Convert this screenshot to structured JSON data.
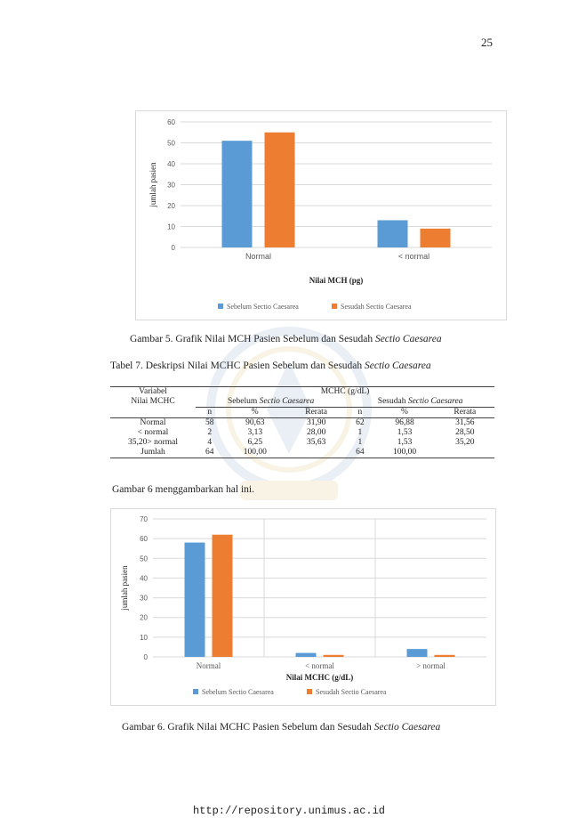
{
  "page_number": "25",
  "figure5": {
    "caption_prefix": "Gambar 5. Grafik Nilai MCH Pasien Sebelum dan Sesudah ",
    "caption_italic": "Sectio Caesarea"
  },
  "table7": {
    "title_prefix": "Tabel 7. Deskripsi Nilai MCHC Pasien Sebelum dan Sesudah ",
    "title_italic": "Sectio Caesarea",
    "header_variable_1": "Variabel",
    "header_variable_2": "Nilai MCHC",
    "header_group": "MCHC (g/dL)",
    "header_before_prefix": "Sebelum ",
    "header_before_italic": "Sectio Caesarea",
    "header_after_prefix": "Sesudah ",
    "header_after_italic": "Sectio Caesarea",
    "col_n": "n",
    "col_pct": "%",
    "col_mean": "Rerata",
    "rows": [
      {
        "label": "Normal",
        "n1": "58",
        "p1": "90,63",
        "m1": "31,90",
        "n2": "62",
        "p2": "96,88",
        "m2": "31,56"
      },
      {
        "label": "< normal",
        "n1": "2",
        "p1": "3,13",
        "m1": "28,00",
        "n2": "1",
        "p2": "1,53",
        "m2": "28,50"
      },
      {
        "label": "35,20>  normal",
        "n1": "4",
        "p1": "6,25",
        "m1": "35,63",
        "n2": "1",
        "p2": "1,53",
        "m2": "35,20"
      },
      {
        "label": "Jumlah",
        "n1": "64",
        "p1": "100,00",
        "m1": "",
        "n2": "64",
        "p2": "100,00",
        "m2": ""
      }
    ]
  },
  "paragraph": "Gambar 6 menggambarkan hal ini.",
  "figure6": {
    "caption_prefix": "Gambar 6. Grafik Nilai MCHC Pasien Sebelum dan Sesudah ",
    "caption_italic": "Sectio Caesarea"
  },
  "footer_url": "http://repository.unimus.ac.id",
  "colors": {
    "before": "#5b9bd5",
    "after": "#ed7d31",
    "grid": "#d9d9d9",
    "axis_text": "#595959"
  },
  "chart_data": [
    {
      "type": "bar",
      "categories": [
        "Normal",
        "< normal"
      ],
      "series": [
        {
          "name": "Sebelum Sectio Caesarea",
          "values": [
            51,
            13
          ]
        },
        {
          "name": "Sesudah Sectio Caesarea",
          "values": [
            55,
            9
          ]
        }
      ],
      "xlabel": "Nilai MCH (pg)",
      "ylabel": "jumlah pasien",
      "ylim": [
        0,
        60
      ],
      "yticks": [
        "0",
        "10",
        "20",
        "30",
        "40",
        "50",
        "60"
      ],
      "grid": true,
      "legend": "bottom"
    },
    {
      "type": "bar",
      "categories": [
        "Normal",
        "< normal",
        "> normal"
      ],
      "series": [
        {
          "name": "Sebelum Sectio Caesarea",
          "values": [
            58,
            2,
            4
          ]
        },
        {
          "name": "Sesudah Sectio Caesarea",
          "values": [
            62,
            1,
            1
          ]
        }
      ],
      "xlabel": "Nilai MCHC (g/dL)",
      "ylabel": "jumlah pasien",
      "ylim": [
        0,
        70
      ],
      "yticks": [
        "0",
        "10",
        "20",
        "30",
        "40",
        "50",
        "60",
        "70"
      ],
      "grid": true,
      "legend": "bottom"
    }
  ]
}
